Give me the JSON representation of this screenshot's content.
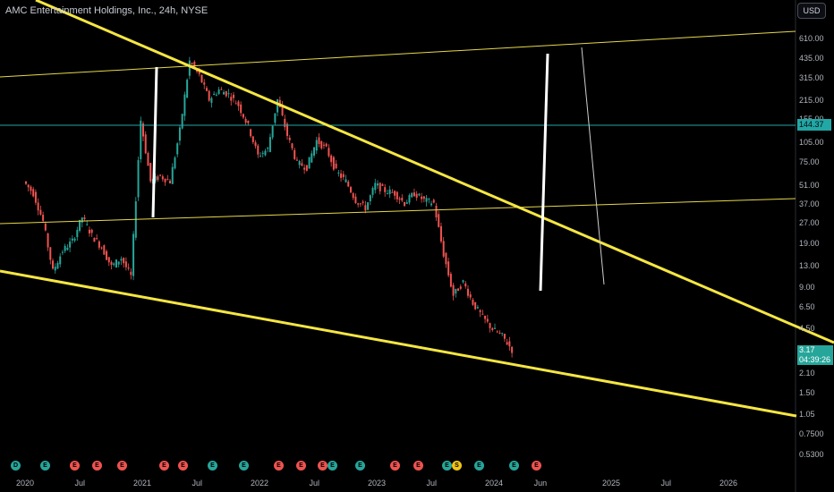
{
  "header": {
    "title": "AMC Entertainment Holdings, Inc., 24h, NYSE",
    "currency": "USD"
  },
  "price_axis": {
    "ticks": [
      "610.00",
      "435.00",
      "315.00",
      "215.00",
      "155.00",
      "105.00",
      "75.00",
      "51.00",
      "37.00",
      "27.00",
      "19.00",
      "13.00",
      "9.00",
      "6.50",
      "4.50",
      "2.10",
      "1.50",
      "1.05",
      "0.7500",
      "0.5300"
    ],
    "level_label": "144.37",
    "last_price": "3.17",
    "countdown": "04:39:26"
  },
  "time_axis": {
    "ticks": [
      "2020",
      "Jul",
      "2021",
      "Jul",
      "2022",
      "Jul",
      "2023",
      "Jul",
      "2024",
      "Jun",
      "2025",
      "Jul",
      "2026"
    ]
  },
  "events": [
    {
      "type": "dividend",
      "label": "D",
      "color": "#26a69a"
    },
    {
      "type": "earnings",
      "label": "E",
      "color": "#26a69a"
    },
    {
      "type": "earnings",
      "label": "E",
      "color": "#ef5350"
    },
    {
      "type": "earnings",
      "label": "E",
      "color": "#ef5350"
    },
    {
      "type": "earnings",
      "label": "E",
      "color": "#ef5350"
    },
    {
      "type": "earnings",
      "label": "E",
      "color": "#ef5350"
    },
    {
      "type": "earnings",
      "label": "E",
      "color": "#ef5350"
    },
    {
      "type": "earnings",
      "label": "E",
      "color": "#26a69a"
    },
    {
      "type": "earnings",
      "label": "E",
      "color": "#26a69a"
    },
    {
      "type": "earnings",
      "label": "E",
      "color": "#ef5350"
    },
    {
      "type": "earnings",
      "label": "E",
      "color": "#ef5350"
    },
    {
      "type": "earnings",
      "label": "E",
      "color": "#ef5350"
    },
    {
      "type": "earnings",
      "label": "E",
      "color": "#26a69a"
    },
    {
      "type": "earnings",
      "label": "E",
      "color": "#26a69a"
    },
    {
      "type": "earnings",
      "label": "E",
      "color": "#ef5350"
    },
    {
      "type": "earnings",
      "label": "E",
      "color": "#ef5350"
    },
    {
      "type": "earnings",
      "label": "E",
      "color": "#26a69a"
    },
    {
      "type": "split",
      "label": "S",
      "color": "#f0c419"
    },
    {
      "type": "earnings",
      "label": "E",
      "color": "#26a69a"
    },
    {
      "type": "earnings",
      "label": "E",
      "color": "#26a69a"
    },
    {
      "type": "earnings",
      "label": "E",
      "color": "#ef5350"
    }
  ],
  "colors": {
    "up": "#26a69a",
    "down": "#ef5350",
    "trendline": "#f5e642",
    "level": "#22a7a7",
    "arrow": "#ffffff"
  },
  "chart_data": {
    "type": "candlestick",
    "scale": "log",
    "series": [
      {
        "name": "",
        "points": [
          [
            "2020-01",
            55
          ],
          [
            "2020-02",
            45
          ],
          [
            "2020-03",
            28
          ],
          [
            "2020-04",
            12
          ],
          [
            "2020-05",
            17
          ],
          [
            "2020-06",
            20
          ],
          [
            "2020-07",
            30
          ],
          [
            "2020-08",
            22
          ],
          [
            "2020-09",
            18
          ],
          [
            "2020-10",
            13
          ],
          [
            "2020-11",
            15
          ],
          [
            "2020-12",
            11
          ],
          [
            "2021-01",
            155
          ],
          [
            "2021-02",
            55
          ],
          [
            "2021-03",
            60
          ],
          [
            "2021-04",
            55
          ],
          [
            "2021-05",
            130
          ],
          [
            "2021-06",
            420
          ],
          [
            "2021-07",
            330
          ],
          [
            "2021-08",
            220
          ],
          [
            "2021-09",
            260
          ],
          [
            "2021-10",
            240
          ],
          [
            "2021-11",
            200
          ],
          [
            "2021-12",
            140
          ],
          [
            "2022-01",
            85
          ],
          [
            "2022-02",
            95
          ],
          [
            "2022-03",
            220
          ],
          [
            "2022-04",
            120
          ],
          [
            "2022-05",
            75
          ],
          [
            "2022-06",
            70
          ],
          [
            "2022-07",
            110
          ],
          [
            "2022-08",
            95
          ],
          [
            "2022-09",
            65
          ],
          [
            "2022-10",
            55
          ],
          [
            "2022-11",
            40
          ],
          [
            "2022-12",
            35
          ],
          [
            "2023-01",
            52
          ],
          [
            "2023-02",
            47
          ],
          [
            "2023-03",
            45
          ],
          [
            "2023-04",
            38
          ],
          [
            "2023-05",
            45
          ],
          [
            "2023-06",
            40
          ],
          [
            "2023-07",
            38
          ],
          [
            "2023-08",
            16
          ],
          [
            "2023-09",
            8
          ],
          [
            "2023-10",
            10
          ],
          [
            "2023-11",
            7
          ],
          [
            "2023-12",
            5.5
          ],
          [
            "2024-01",
            4.5
          ],
          [
            "2024-02",
            4
          ],
          [
            "2024-03",
            3.17
          ]
        ]
      }
    ],
    "yticks": [
      610,
      435,
      315,
      215,
      155,
      105,
      75,
      51,
      37,
      27,
      19,
      13,
      9,
      6.5,
      4.5,
      2.1,
      1.5,
      1.05,
      0.75,
      0.53
    ],
    "horizontal_level": 144.37
  }
}
